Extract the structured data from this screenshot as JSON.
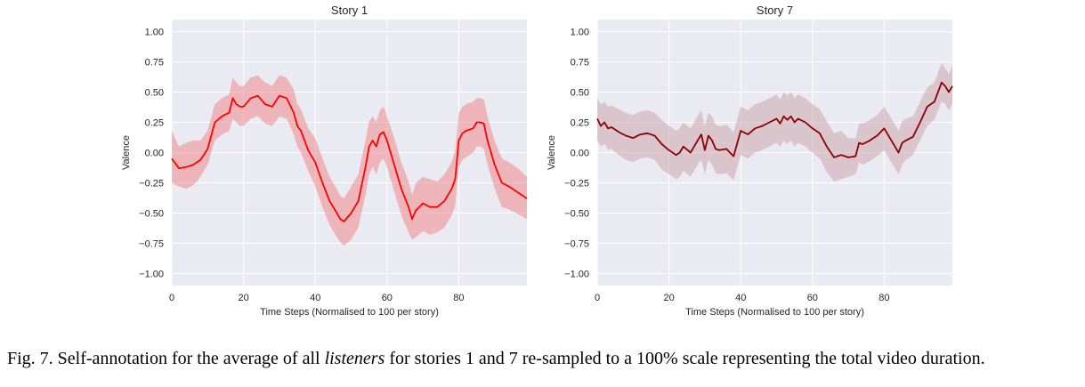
{
  "chart_data": [
    {
      "type": "line",
      "title": "Story 1",
      "xlabel": "Time Steps (Normalised to 100 per story)",
      "ylabel": "Valence",
      "xlim": [
        0,
        99
      ],
      "ylim": [
        -1.1,
        1.1
      ],
      "xticks": [
        0,
        20,
        40,
        60,
        80
      ],
      "xtick_labels": [
        "0",
        "20",
        "40",
        "60",
        "80"
      ],
      "yticks": [
        1.0,
        0.75,
        0.5,
        0.25,
        0.0,
        -0.25,
        -0.5,
        -0.75,
        -1.0
      ],
      "ytick_labels": [
        "1.00",
        "0.75",
        "0.50",
        "0.25",
        "0.00",
        "−0.25",
        "−0.50",
        "−0.75",
        "−1.00"
      ],
      "grid": true,
      "line_color": "#ff0000",
      "band_color": "#f08080",
      "series": [
        {
          "x": [
            0,
            2,
            4,
            6,
            8,
            10,
            12,
            14,
            16,
            17,
            18,
            19,
            20,
            22,
            24,
            26,
            28,
            30,
            32,
            34,
            35,
            36,
            38,
            40,
            42,
            44,
            46,
            47,
            48,
            50,
            52,
            54,
            55,
            56,
            57,
            58,
            59,
            60,
            62,
            64,
            66,
            67,
            68,
            70,
            72,
            74,
            76,
            78,
            79,
            80,
            81,
            82,
            84,
            85,
            86,
            87,
            88,
            90,
            92,
            94,
            96,
            99
          ],
          "y": [
            -0.05,
            -0.13,
            -0.12,
            -0.1,
            -0.06,
            0.03,
            0.25,
            0.3,
            0.33,
            0.45,
            0.4,
            0.38,
            0.38,
            0.45,
            0.47,
            0.4,
            0.38,
            0.47,
            0.45,
            0.33,
            0.22,
            0.18,
            0.02,
            -0.08,
            -0.25,
            -0.4,
            -0.5,
            -0.55,
            -0.57,
            -0.5,
            -0.4,
            -0.12,
            0.05,
            0.1,
            0.05,
            0.15,
            0.17,
            0.1,
            -0.1,
            -0.3,
            -0.45,
            -0.55,
            -0.48,
            -0.42,
            -0.45,
            -0.45,
            -0.4,
            -0.3,
            -0.22,
            0.1,
            0.16,
            0.18,
            0.2,
            0.25,
            0.25,
            0.24,
            0.1,
            -0.1,
            -0.25,
            -0.28,
            -0.32,
            -0.38
          ],
          "lower": [
            -0.25,
            -0.28,
            -0.3,
            -0.27,
            -0.2,
            -0.1,
            0.1,
            0.15,
            0.18,
            0.28,
            0.25,
            0.22,
            0.22,
            0.28,
            0.3,
            0.24,
            0.22,
            0.3,
            0.28,
            0.15,
            0.05,
            0.0,
            -0.15,
            -0.28,
            -0.45,
            -0.6,
            -0.7,
            -0.74,
            -0.77,
            -0.72,
            -0.62,
            -0.35,
            -0.18,
            -0.12,
            -0.18,
            -0.08,
            -0.05,
            -0.12,
            -0.32,
            -0.52,
            -0.66,
            -0.72,
            -0.7,
            -0.65,
            -0.68,
            -0.66,
            -0.62,
            -0.52,
            -0.44,
            -0.12,
            -0.06,
            -0.04,
            0.0,
            0.05,
            0.05,
            0.03,
            -0.1,
            -0.3,
            -0.45,
            -0.47,
            -0.5,
            -0.55
          ],
          "upper": [
            0.18,
            0.05,
            0.08,
            0.1,
            0.1,
            0.18,
            0.4,
            0.45,
            0.48,
            0.62,
            0.58,
            0.55,
            0.55,
            0.62,
            0.64,
            0.58,
            0.55,
            0.64,
            0.62,
            0.52,
            0.4,
            0.36,
            0.2,
            0.12,
            -0.05,
            -0.2,
            -0.3,
            -0.36,
            -0.38,
            -0.28,
            -0.18,
            0.1,
            0.26,
            0.3,
            0.25,
            0.35,
            0.38,
            0.3,
            0.12,
            -0.08,
            -0.24,
            -0.35,
            -0.25,
            -0.2,
            -0.22,
            -0.24,
            -0.18,
            -0.08,
            0.02,
            0.32,
            0.38,
            0.4,
            0.42,
            0.45,
            0.45,
            0.44,
            0.3,
            0.1,
            -0.05,
            -0.08,
            -0.12,
            -0.2
          ]
        }
      ]
    },
    {
      "type": "line",
      "title": "Story 7",
      "xlabel": "Time Steps (Normalised to 100 per story)",
      "ylabel": "Valence",
      "xlim": [
        0,
        99
      ],
      "ylim": [
        -1.1,
        1.1
      ],
      "xticks": [
        0,
        20,
        40,
        60,
        80
      ],
      "xtick_labels": [
        "0",
        "20",
        "40",
        "60",
        "80"
      ],
      "yticks": [
        1.0,
        0.75,
        0.5,
        0.25,
        0.0,
        -0.25,
        -0.5,
        -0.75,
        -1.0
      ],
      "ytick_labels": [
        "1.00",
        "0.75",
        "0.50",
        "0.25",
        "0.00",
        "−0.25",
        "−0.50",
        "−0.75",
        "−1.00"
      ],
      "grid": true,
      "line_color": "#8b0000",
      "band_color": "#c9a0a8",
      "series": [
        {
          "x": [
            0,
            1,
            2,
            3,
            4,
            6,
            8,
            10,
            12,
            14,
            16,
            18,
            20,
            22,
            23,
            24,
            26,
            28,
            29,
            30,
            31,
            32,
            33,
            34,
            36,
            38,
            40,
            42,
            44,
            46,
            48,
            50,
            51,
            52,
            53,
            54,
            55,
            56,
            58,
            60,
            62,
            64,
            66,
            68,
            70,
            72,
            73,
            74,
            76,
            78,
            80,
            82,
            84,
            85,
            86,
            88,
            90,
            92,
            94,
            96,
            97,
            98,
            99
          ],
          "y": [
            0.28,
            0.22,
            0.25,
            0.2,
            0.21,
            0.17,
            0.14,
            0.12,
            0.15,
            0.16,
            0.14,
            0.07,
            0.02,
            -0.02,
            0.0,
            0.05,
            0.0,
            0.1,
            0.15,
            0.02,
            0.14,
            0.1,
            0.03,
            0.02,
            0.03,
            -0.03,
            0.18,
            0.15,
            0.2,
            0.22,
            0.25,
            0.28,
            0.24,
            0.3,
            0.27,
            0.3,
            0.25,
            0.28,
            0.25,
            0.2,
            0.16,
            0.05,
            -0.04,
            -0.02,
            -0.04,
            -0.03,
            0.08,
            0.07,
            0.1,
            0.14,
            0.2,
            0.1,
            0.0,
            0.08,
            0.1,
            0.13,
            0.25,
            0.38,
            0.42,
            0.58,
            0.55,
            0.5,
            0.55
          ],
          "lower": [
            0.1,
            0.05,
            0.07,
            0.02,
            0.03,
            -0.02,
            -0.06,
            -0.08,
            -0.05,
            -0.04,
            -0.06,
            -0.14,
            -0.18,
            -0.22,
            -0.2,
            -0.15,
            -0.2,
            -0.1,
            -0.06,
            -0.18,
            -0.06,
            -0.1,
            -0.17,
            -0.18,
            -0.17,
            -0.23,
            -0.02,
            -0.05,
            0.0,
            0.02,
            0.05,
            0.08,
            0.05,
            0.1,
            0.07,
            0.1,
            0.05,
            0.08,
            0.05,
            0.0,
            -0.05,
            -0.16,
            -0.24,
            -0.22,
            -0.2,
            -0.18,
            -0.08,
            -0.1,
            -0.07,
            -0.03,
            0.02,
            -0.08,
            -0.18,
            -0.1,
            -0.06,
            -0.02,
            0.1,
            0.22,
            0.27,
            0.42,
            0.4,
            0.35,
            0.4
          ],
          "upper": [
            0.45,
            0.4,
            0.42,
            0.38,
            0.39,
            0.36,
            0.33,
            0.31,
            0.34,
            0.35,
            0.33,
            0.27,
            0.22,
            0.18,
            0.2,
            0.25,
            0.2,
            0.3,
            0.35,
            0.22,
            0.33,
            0.3,
            0.23,
            0.22,
            0.23,
            0.17,
            0.38,
            0.35,
            0.4,
            0.42,
            0.45,
            0.48,
            0.44,
            0.5,
            0.47,
            0.5,
            0.45,
            0.48,
            0.45,
            0.4,
            0.36,
            0.26,
            0.16,
            0.18,
            0.12,
            0.12,
            0.24,
            0.24,
            0.27,
            0.31,
            0.38,
            0.28,
            0.18,
            0.26,
            0.28,
            0.3,
            0.42,
            0.54,
            0.58,
            0.74,
            0.7,
            0.65,
            0.72
          ]
        }
      ]
    }
  ],
  "caption": {
    "prefix": "Fig. 7.   Self-annotation for the average of all ",
    "emphasis": "listeners",
    "suffix": " for stories 1 and 7 re-sampled to a 100% scale representing the total video duration."
  }
}
